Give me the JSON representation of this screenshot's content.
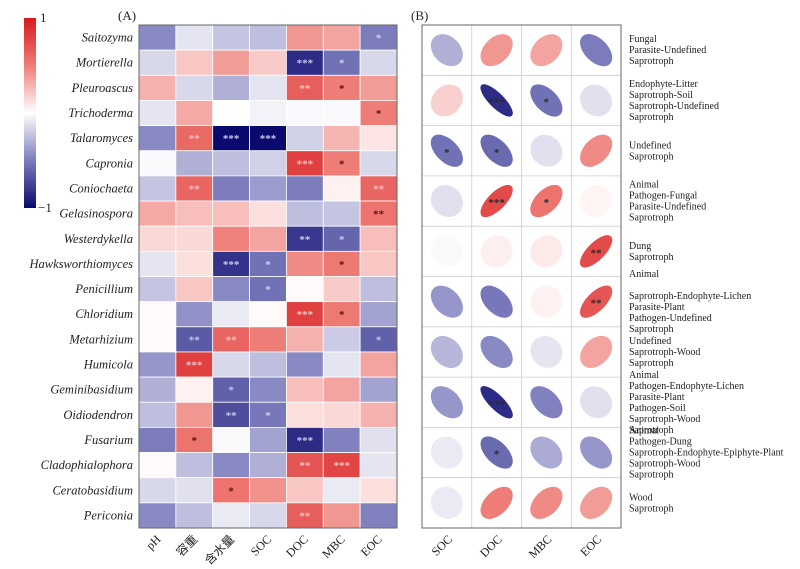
{
  "chart_data": [
    {
      "type": "heatmap",
      "panel_label": "(A)",
      "title": "",
      "columns": [
        "pH",
        "容重",
        "含水量",
        "SOC",
        "DOC",
        "MBC",
        "EOC"
      ],
      "rows": [
        "Saitozyma",
        "Mortierella",
        "Pleuroascus",
        "Trichoderma",
        "Talaromyces",
        "Capronia",
        "Coniochaeta",
        "Gelasinospora",
        "Westerdykella",
        "Hawksworthiomyces",
        "Penicillium",
        "Chloridium",
        "Metarhizium",
        "Humicola",
        "Geminibasidium",
        "Oidiodendron",
        "Fusarium",
        "Cladophialophora",
        "Ceratobasidium",
        "Periconia"
      ],
      "values": [
        [
          -0.45,
          -0.1,
          -0.22,
          -0.25,
          0.4,
          0.35,
          -0.5
        ],
        [
          -0.15,
          0.22,
          0.38,
          0.2,
          -0.85,
          -0.55,
          -0.15
        ],
        [
          0.3,
          -0.15,
          -0.3,
          -0.1,
          0.65,
          0.5,
          0.38
        ],
        [
          -0.1,
          0.33,
          0.0,
          -0.05,
          -0.02,
          -0.02,
          0.5
        ],
        [
          -0.45,
          0.6,
          -1.0,
          -1.0,
          -0.18,
          0.28,
          0.1
        ],
        [
          -0.02,
          -0.3,
          -0.25,
          -0.18,
          0.8,
          0.5,
          -0.15
        ],
        [
          -0.22,
          0.62,
          -0.5,
          -0.38,
          -0.5,
          0.05,
          0.62
        ],
        [
          0.33,
          0.25,
          0.25,
          0.12,
          -0.25,
          -0.22,
          0.55
        ],
        [
          0.15,
          0.15,
          0.48,
          0.35,
          -0.8,
          -0.6,
          0.25
        ],
        [
          -0.1,
          0.12,
          -0.82,
          -0.55,
          0.45,
          0.52,
          0.22
        ],
        [
          -0.22,
          0.22,
          -0.45,
          -0.55,
          0.02,
          0.2,
          -0.25
        ],
        [
          0.02,
          -0.42,
          -0.08,
          0.02,
          0.8,
          0.52,
          -0.35
        ],
        [
          0.02,
          -0.65,
          0.62,
          0.5,
          0.3,
          -0.2,
          -0.62
        ],
        [
          -0.4,
          0.8,
          -0.15,
          -0.25,
          -0.45,
          -0.1,
          0.35
        ],
        [
          -0.3,
          0.05,
          -0.62,
          -0.45,
          0.25,
          0.35,
          -0.35
        ],
        [
          -0.25,
          0.4,
          -0.7,
          -0.52,
          0.12,
          0.15,
          0.3
        ],
        [
          -0.5,
          0.55,
          -0.02,
          -0.35,
          -0.85,
          -0.48,
          -0.12
        ],
        [
          0.02,
          -0.25,
          -0.45,
          -0.3,
          0.7,
          0.78,
          -0.1
        ],
        [
          -0.15,
          -0.12,
          0.55,
          0.42,
          0.22,
          -0.08,
          0.12
        ],
        [
          -0.45,
          -0.25,
          -0.08,
          -0.15,
          0.65,
          0.4,
          -0.48
        ]
      ],
      "significance": [
        [
          "",
          "",
          "",
          "",
          "",
          "",
          "*"
        ],
        [
          "",
          "",
          "",
          "",
          "***",
          "*",
          ""
        ],
        [
          "",
          "",
          "",
          "",
          "**",
          "*",
          ""
        ],
        [
          "",
          "",
          "",
          "",
          "",
          "",
          "*"
        ],
        [
          "",
          "**",
          "***",
          "***",
          "",
          "",
          ""
        ],
        [
          "",
          "",
          "",
          "",
          "***",
          "*",
          ""
        ],
        [
          "",
          "**",
          "",
          "",
          "",
          "",
          "**"
        ],
        [
          "",
          "",
          "",
          "",
          "",
          "",
          "**"
        ],
        [
          "",
          "",
          "",
          "",
          "**",
          "*",
          ""
        ],
        [
          "",
          "",
          "***",
          "*",
          "",
          "*",
          ""
        ],
        [
          "",
          "",
          "",
          "*",
          "",
          "",
          ""
        ],
        [
          "",
          "",
          "",
          "",
          "***",
          "*",
          ""
        ],
        [
          "",
          "**",
          "**",
          "",
          "",
          "",
          "*"
        ],
        [
          "",
          "***",
          "",
          "",
          "",
          "",
          ""
        ],
        [
          "",
          "",
          "*",
          "",
          "",
          "",
          ""
        ],
        [
          "",
          "",
          "**",
          "*",
          "",
          "",
          ""
        ],
        [
          "",
          "*",
          "",
          "",
          "***",
          "",
          ""
        ],
        [
          "",
          "",
          "",
          "",
          "**",
          "***",
          ""
        ],
        [
          "",
          "",
          "*",
          "",
          "",
          "",
          ""
        ],
        [
          "",
          "",
          "",
          "",
          "**",
          "",
          ""
        ]
      ],
      "colorbar": {
        "min": -1,
        "max": 1,
        "min_label": "−1",
        "max_label": "1",
        "low_color": "#0a0a6e",
        "mid_color": "#ffffff",
        "high_color": "#d7191c"
      }
    },
    {
      "type": "heatmap",
      "subtype": "ellipse-correlation",
      "panel_label": "(B)",
      "columns": [
        "SOC",
        "DOC",
        "MBC",
        "EOC"
      ],
      "rows": [
        [
          "Fungal",
          "Parasite-Undefined",
          "Saprotroph"
        ],
        [
          "Endophyte-Litter",
          "Saprotroph-Soil",
          "Saprotroph-Undefined",
          "Saprotroph"
        ],
        [
          "Undefined",
          "Saprotroph"
        ],
        [
          "Animal",
          "Pathogen-Fungal",
          "Parasite-Undefined",
          "Saprotroph"
        ],
        [
          "Dung",
          "Saprotroph"
        ],
        [
          "Animal",
          "",
          "Saprotroph-Endophyte-Lichen",
          "Parasite-Plant",
          "Pathogen-Undefined",
          "Saprotroph"
        ],
        [
          "Undefined",
          "Saprotroph-Wood",
          "Saprotroph"
        ],
        [
          "Animal",
          "Pathogen-Endophyte-Lichen",
          "Parasite-Plant",
          "Pathogen-Soil",
          "Saprotroph-Wood",
          "Saprotroph"
        ],
        [
          "Animal",
          "Pathogen-Dung",
          "Saprotroph-Endophyte-Epiphyte-Plant",
          "Saprotroph-Wood",
          "Saprotroph"
        ],
        [
          "Wood",
          "Saprotroph"
        ]
      ],
      "values": [
        [
          -0.3,
          0.4,
          0.35,
          -0.5
        ],
        [
          0.18,
          -0.85,
          -0.55,
          -0.12
        ],
        [
          -0.55,
          -0.58,
          -0.12,
          0.45
        ],
        [
          -0.12,
          0.75,
          0.55,
          0.04
        ],
        [
          -0.02,
          0.06,
          0.08,
          0.75
        ],
        [
          -0.4,
          -0.52,
          0.05,
          0.7
        ],
        [
          -0.28,
          -0.45,
          -0.1,
          0.35
        ],
        [
          -0.4,
          -0.85,
          -0.48,
          -0.12
        ],
        [
          -0.08,
          -0.58,
          -0.32,
          -0.4
        ],
        [
          -0.08,
          0.5,
          0.45,
          0.38
        ]
      ],
      "significance": [
        [
          "",
          "",
          "",
          ""
        ],
        [
          "",
          "***",
          "*",
          ""
        ],
        [
          "*",
          "*",
          "",
          ""
        ],
        [
          "",
          "***",
          "*",
          ""
        ],
        [
          "",
          "",
          "",
          "**"
        ],
        [
          "",
          "",
          "",
          "**"
        ],
        [
          "",
          "",
          "",
          ""
        ],
        [
          "",
          "***",
          "",
          ""
        ],
        [
          "",
          "*",
          "",
          ""
        ],
        [
          "",
          "",
          "",
          ""
        ]
      ]
    }
  ]
}
